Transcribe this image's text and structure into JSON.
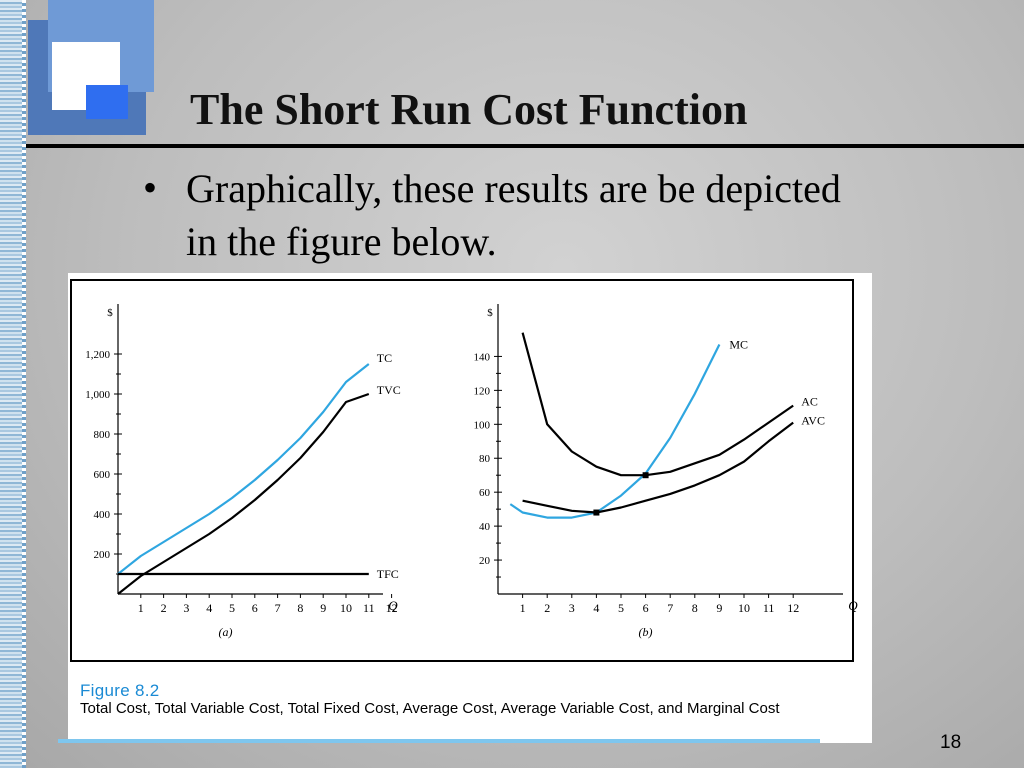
{
  "slide": {
    "title": "The Short Run Cost Function",
    "bullet": "Graphically, these results are be depicted in the figure below.",
    "page_number": "18"
  },
  "figure": {
    "label": "Figure 8.2",
    "caption": "Total Cost, Total Variable Cost, Total Fixed Cost, Average Cost, Average Variable Cost, and Marginal Cost"
  },
  "colors": {
    "blue_curve": "#2fa6e0",
    "black_curve": "#000000",
    "caption_blue": "#1a8ad4"
  },
  "chart_data": [
    {
      "type": "line",
      "panel_label": "(a)",
      "ylabel": "$",
      "xlabel": "Q",
      "x_ticks": [
        "1",
        "2",
        "3",
        "4",
        "5",
        "6",
        "7",
        "8",
        "9",
        "10",
        "11",
        "12"
      ],
      "y_ticks": [
        "200",
        "400",
        "600",
        "800",
        "1,000",
        "1,200"
      ],
      "xlim": [
        0,
        13
      ],
      "ylim": [
        0,
        1400
      ],
      "grid": false,
      "series": [
        {
          "name": "TC",
          "color": "#2fa6e0",
          "x": [
            0,
            1,
            2,
            3,
            4,
            5,
            6,
            7,
            8,
            9,
            10,
            11
          ],
          "y": [
            100,
            190,
            260,
            330,
            400,
            480,
            570,
            670,
            780,
            910,
            1060,
            1150
          ]
        },
        {
          "name": "TVC",
          "color": "#000000",
          "x": [
            0,
            1,
            2,
            3,
            4,
            5,
            6,
            7,
            8,
            9,
            10,
            11
          ],
          "y": [
            0,
            90,
            160,
            230,
            300,
            380,
            470,
            570,
            680,
            810,
            960,
            1000
          ]
        },
        {
          "name": "TFC",
          "color": "#000000",
          "x": [
            0,
            11
          ],
          "y": [
            100,
            100
          ]
        }
      ]
    },
    {
      "type": "line",
      "panel_label": "(b)",
      "ylabel": "$",
      "xlabel": "Q",
      "x_ticks": [
        "1",
        "2",
        "3",
        "4",
        "5",
        "6",
        "7",
        "8",
        "9",
        "10",
        "11",
        "12"
      ],
      "y_ticks": [
        "20",
        "40",
        "60",
        "80",
        "100",
        "120",
        "140"
      ],
      "xlim": [
        0,
        13
      ],
      "ylim": [
        0,
        165
      ],
      "grid": false,
      "series": [
        {
          "name": "MC",
          "color": "#2fa6e0",
          "x": [
            0.5,
            1,
            2,
            3,
            4,
            5,
            6,
            7,
            8,
            9
          ],
          "y": [
            53,
            48,
            45,
            45,
            48,
            58,
            71,
            92,
            118,
            147
          ]
        },
        {
          "name": "AC",
          "color": "#000000",
          "x": [
            1,
            2,
            3,
            4,
            5,
            6,
            7,
            8,
            9,
            10,
            11,
            12
          ],
          "y": [
            154,
            100,
            84,
            75,
            70,
            70,
            72,
            77,
            82,
            91,
            101,
            111
          ]
        },
        {
          "name": "AVC",
          "color": "#000000",
          "x": [
            1,
            2,
            3,
            4,
            5,
            6,
            7,
            8,
            9,
            10,
            11,
            12
          ],
          "y": [
            55,
            52,
            49,
            48,
            51,
            55,
            59,
            64,
            70,
            78,
            90,
            101
          ]
        }
      ],
      "points": [
        {
          "x": 4,
          "y": 48
        },
        {
          "x": 6,
          "y": 70
        }
      ]
    }
  ]
}
